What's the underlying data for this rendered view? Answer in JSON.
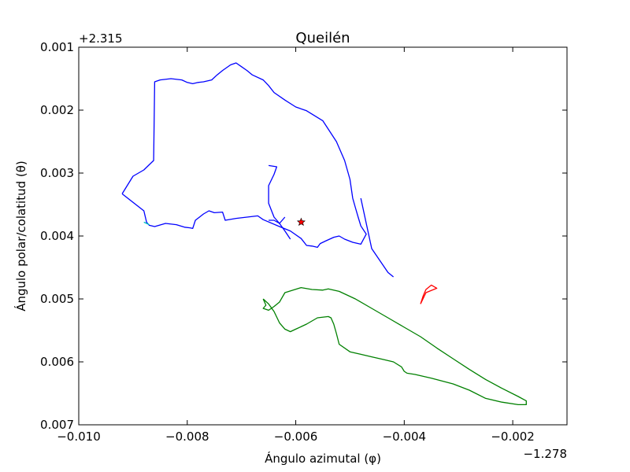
{
  "chart_data": {
    "type": "line",
    "title": "Queilén",
    "xlabel": "Ángulo azimutal (φ)",
    "ylabel": "Ángulo polar/colatitud (θ)",
    "x_offset_label": "−1.278",
    "y_offset_label": "+2.315",
    "xlim": [
      -0.01,
      -0.001
    ],
    "ylim": [
      0.007,
      0.001
    ],
    "y_inverted": true,
    "x_ticks": [
      -0.01,
      -0.008,
      -0.006,
      -0.004,
      -0.002
    ],
    "x_tick_labels": [
      "−0.010",
      "−0.008",
      "−0.006",
      "−0.004",
      "−0.002"
    ],
    "y_ticks": [
      0.001,
      0.002,
      0.003,
      0.004,
      0.005,
      0.006,
      0.007
    ],
    "y_tick_labels": [
      "0.001",
      "0.002",
      "0.003",
      "0.004",
      "0.005",
      "0.006",
      "0.007"
    ],
    "grid": false,
    "series": [
      {
        "color": "#0000ff",
        "x": [
          -0.0092,
          -0.0088,
          -0.00875,
          -0.0087,
          -0.0086,
          -0.0084,
          -0.0082,
          -0.00805,
          -0.00795,
          -0.0079,
          -0.00785,
          -0.0077,
          -0.0076,
          -0.0075,
          -0.00735,
          -0.0073,
          -0.0071,
          -0.0069,
          -0.0067,
          -0.0066,
          -0.0063,
          -0.0061,
          -0.0059,
          -0.0058,
          -0.0057,
          -0.0056,
          -0.00555,
          -0.00545,
          -0.0053,
          -0.0052,
          -0.0051,
          -0.00495,
          -0.0048,
          -0.0047,
          -0.0048,
          -0.00485,
          -0.0049,
          -0.00495,
          -0.005,
          -0.0051,
          -0.00525,
          -0.0055,
          -0.0058,
          -0.006,
          -0.0062,
          -0.0064,
          -0.0065,
          -0.0066,
          -0.0068,
          -0.0069,
          -0.007,
          -0.0071,
          -0.0072,
          -0.00735,
          -0.00745,
          -0.00755,
          -0.0077,
          -0.0078,
          -0.0079,
          -0.008,
          -0.0081,
          -0.0083,
          -0.0085,
          -0.0086,
          -0.00862,
          -0.0088,
          -0.009,
          -0.0092
        ],
        "y": [
          0.00333,
          0.0036,
          0.00378,
          0.00383,
          0.00385,
          0.0038,
          0.00382,
          0.00386,
          0.00387,
          0.00388,
          0.00375,
          0.00365,
          0.0036,
          0.00363,
          0.00362,
          0.00375,
          0.00372,
          0.0037,
          0.00368,
          0.00374,
          0.00385,
          0.00392,
          0.00404,
          0.00415,
          0.00416,
          0.00418,
          0.00412,
          0.00408,
          0.00402,
          0.004,
          0.00405,
          0.0041,
          0.00413,
          0.00397,
          0.00384,
          0.0037,
          0.00355,
          0.0034,
          0.0031,
          0.0028,
          0.0025,
          0.00217,
          0.00201,
          0.00195,
          0.00184,
          0.00172,
          0.00161,
          0.00152,
          0.00144,
          0.00137,
          0.00131,
          0.00125,
          0.00128,
          0.00137,
          0.00144,
          0.00152,
          0.00155,
          0.00156,
          0.00158,
          0.00156,
          0.00152,
          0.0015,
          0.00152,
          0.00155,
          0.0028,
          0.00295,
          0.00305,
          0.00333
        ]
      },
      {
        "color": "#0000ff",
        "x": [
          -0.0065,
          -0.00635,
          -0.0064,
          -0.0065,
          -0.0065,
          -0.0064,
          -0.0063,
          -0.0062
        ],
        "y": [
          0.00288,
          0.0029,
          0.00302,
          0.0032,
          0.00348,
          0.0037,
          0.0038,
          0.0037
        ]
      },
      {
        "color": "#0000ff",
        "x": [
          -0.0061,
          -0.0062,
          -0.0063,
          -0.0064,
          -0.0065
        ],
        "y": [
          0.00405,
          0.00392,
          0.0038,
          0.00375,
          0.00375
        ]
      },
      {
        "color": "#0000ff",
        "x": [
          -0.0048,
          -0.0046,
          -0.0043,
          -0.0042
        ],
        "y": [
          0.0034,
          0.0042,
          0.00458,
          0.00465
        ]
      },
      {
        "color": "#008000",
        "x": [
          -0.0066,
          -0.00655,
          -0.0066,
          -0.0065,
          -0.0064,
          -0.0063,
          -0.0062,
          -0.0059,
          -0.0057,
          -0.0055,
          -0.0054,
          -0.0052,
          -0.0049,
          -0.0046,
          -0.0043,
          -0.004,
          -0.0037,
          -0.0034,
          -0.0031,
          -0.0028,
          -0.0025,
          -0.0022,
          -0.0019,
          -0.00175,
          -0.00175,
          -0.0019,
          -0.0022,
          -0.0025,
          -0.0028,
          -0.0031,
          -0.0035,
          -0.0038,
          -0.00395,
          -0.004,
          -0.00405,
          -0.0042,
          -0.0044,
          -0.0046,
          -0.0048,
          -0.005,
          -0.0052,
          -0.00525,
          -0.0053,
          -0.00535,
          -0.0054,
          -0.0056,
          -0.0058,
          -0.006,
          -0.0061,
          -0.0062,
          -0.0063,
          -0.0064,
          -0.0065,
          -0.0066
        ],
        "y": [
          0.005,
          0.0051,
          0.00515,
          0.00518,
          0.00512,
          0.00505,
          0.0049,
          0.00482,
          0.00485,
          0.00486,
          0.00484,
          0.00488,
          0.005,
          0.00515,
          0.0053,
          0.00545,
          0.0056,
          0.00578,
          0.00595,
          0.00612,
          0.00628,
          0.00642,
          0.00655,
          0.00662,
          0.00668,
          0.00668,
          0.00664,
          0.00658,
          0.00645,
          0.00635,
          0.00626,
          0.0062,
          0.00618,
          0.00615,
          0.00608,
          0.006,
          0.00596,
          0.00592,
          0.00588,
          0.00584,
          0.00572,
          0.00555,
          0.0054,
          0.0053,
          0.00528,
          0.0053,
          0.0054,
          0.00548,
          0.00552,
          0.00548,
          0.00538,
          0.0052,
          0.00508,
          0.005
        ]
      },
      {
        "color": "#ff0000",
        "x": [
          -0.0037,
          -0.00365,
          -0.0036,
          -0.0035,
          -0.0034,
          -0.0036,
          -0.0037
        ],
        "y": [
          0.00508,
          0.00495,
          0.00485,
          0.00478,
          0.00483,
          0.0049,
          0.00508
        ]
      },
      {
        "color": "#00bfbf",
        "x": [
          -0.0088,
          -0.00875,
          -0.0087
        ],
        "y": [
          0.00378,
          0.0038,
          0.00382
        ]
      }
    ],
    "markers": [
      {
        "symbol": "star",
        "color": "#ff0000",
        "x": -0.0059,
        "y": 0.00378
      }
    ]
  }
}
